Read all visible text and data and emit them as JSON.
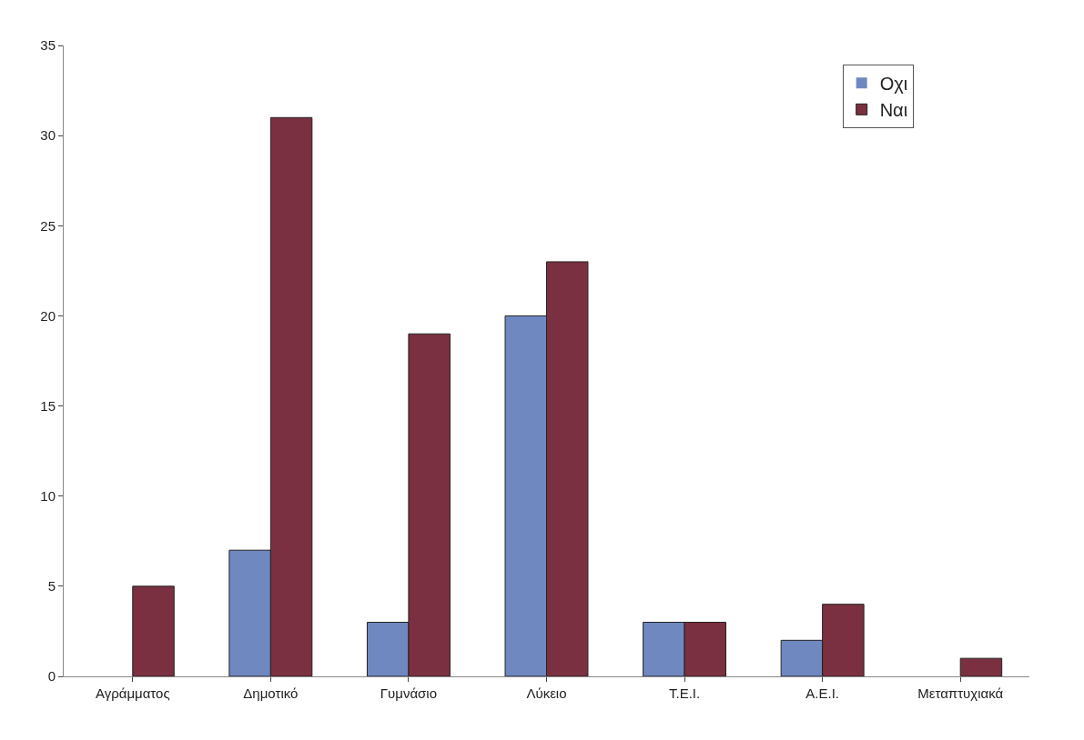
{
  "chart_data": {
    "type": "bar",
    "categories": [
      "Αγράμματος",
      "Δημοτικό",
      "Γυμνάσιο",
      "Λύκειο",
      "Τ.Ε.Ι.",
      "Α.Ε.Ι.",
      "Μεταπτυχιακά"
    ],
    "series": [
      {
        "name": "Οχι",
        "color": "#7088c0",
        "values": [
          0,
          7,
          3,
          20,
          3,
          2,
          0
        ]
      },
      {
        "name": "Ναι",
        "color": "#7a3040",
        "values": [
          5,
          31,
          19,
          23,
          3,
          4,
          1
        ]
      }
    ],
    "ylim": [
      0,
      35
    ],
    "yticks": [
      0,
      5,
      10,
      15,
      20,
      25,
      30,
      35
    ],
    "legend": "top right"
  }
}
